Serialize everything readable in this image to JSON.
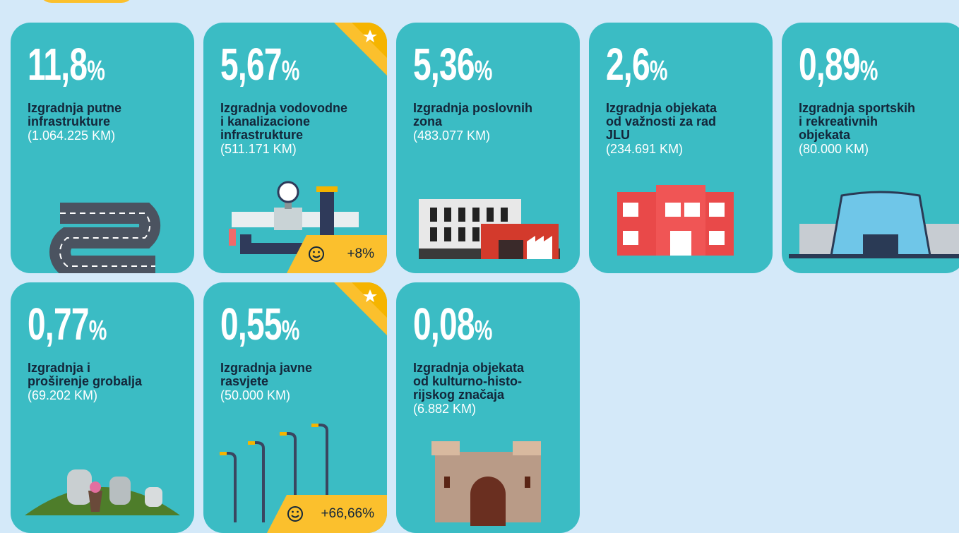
{
  "cards": [
    {
      "value": "11,8",
      "unit": "%",
      "title": [
        "Izgradnja putne",
        "infrastrukture"
      ],
      "amount": "(1.064.225 KM)"
    },
    {
      "value": "5,67",
      "unit": "%",
      "title": [
        "Izgradnja vodovodne",
        "i kanalizacione",
        "infrastrukture"
      ],
      "amount": "(511.171 KM)",
      "star": true,
      "change": "+8%"
    },
    {
      "value": "5,36",
      "unit": "%",
      "title": [
        "Izgradnja poslovnih",
        "zona"
      ],
      "amount": "(483.077 KM)"
    },
    {
      "value": "2,6",
      "unit": "%",
      "title": [
        "Izgradnja objekata",
        "od važnosti za rad",
        "JLU"
      ],
      "amount": "(234.691 KM)"
    },
    {
      "value": "0,89",
      "unit": "%",
      "title": [
        "Izgradnja sportskih",
        "i rekreativnih",
        "objekata"
      ],
      "amount": "(80.000 KM)"
    },
    {
      "value": "0,77",
      "unit": "%",
      "title": [
        "Izgradnja i",
        "proširenje grobalja"
      ],
      "amount": "(69.202 KM)"
    },
    {
      "value": "0,55",
      "unit": "%",
      "title": [
        "Izgradnja javne",
        "rasvjete"
      ],
      "amount": "(50.000 KM)",
      "star": true,
      "change": "+66,66%"
    },
    {
      "value": "0,08",
      "unit": "%",
      "title": [
        "Izgradnja objekata",
        "od kulturno-histo-",
        "rijskog značaja"
      ],
      "amount": "(6.882 KM)"
    }
  ]
}
